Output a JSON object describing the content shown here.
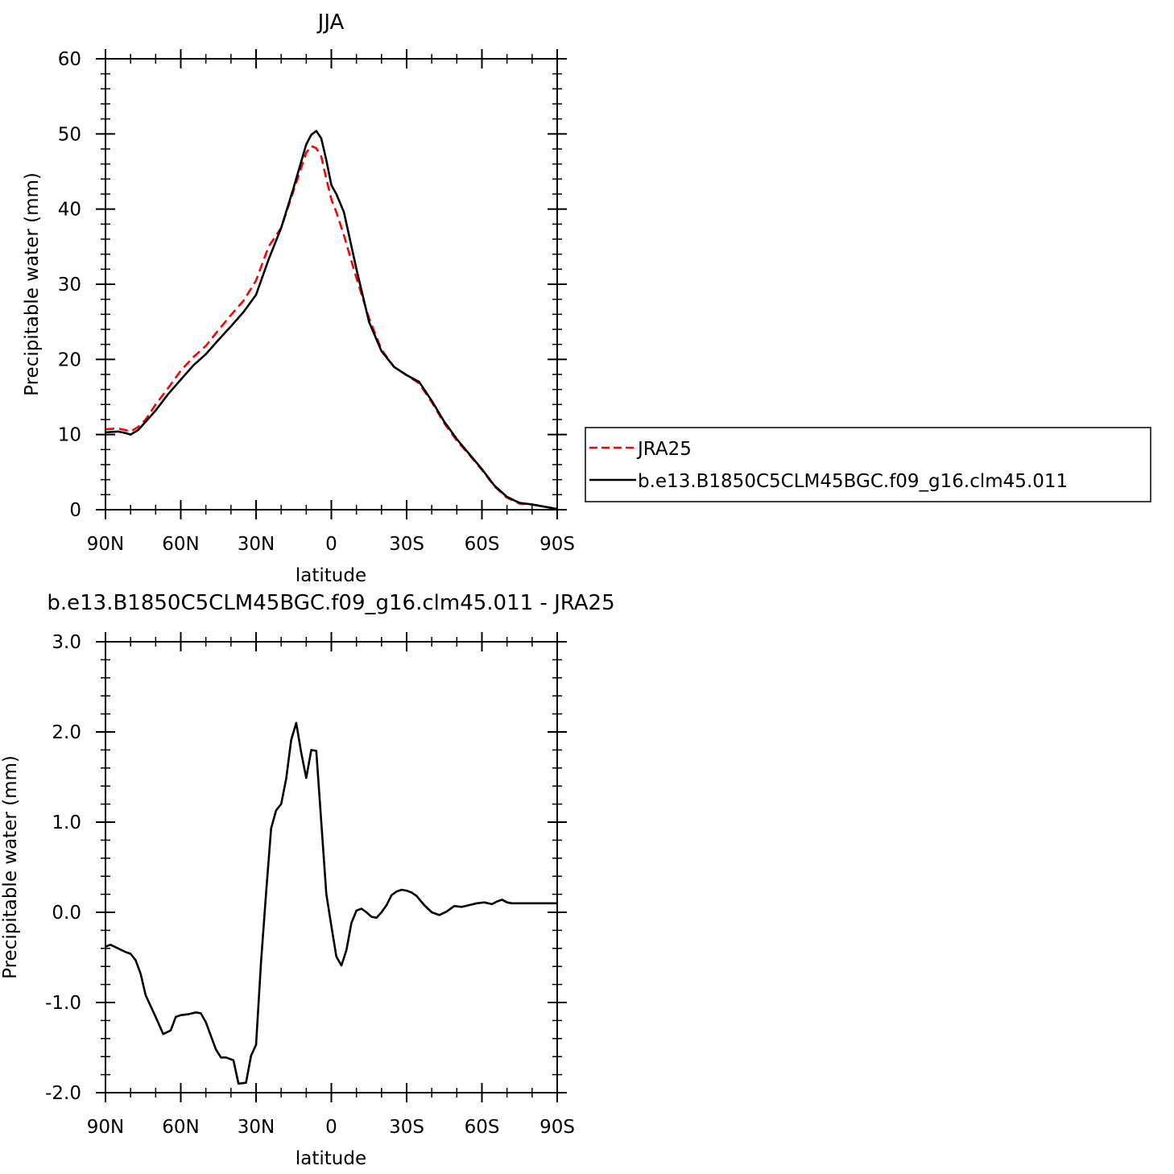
{
  "chart_data": [
    {
      "type": "line",
      "title": "JJA",
      "xlabel": "latitude",
      "ylabel": "Precipitable water (mm)",
      "xlim": [
        90,
        -90
      ],
      "ylim": [
        0,
        60
      ],
      "x_tick_values": [
        90,
        60,
        30,
        0,
        -30,
        -60,
        -90
      ],
      "x_tick_labels": [
        "90N",
        "60N",
        "30N",
        "0",
        "30S",
        "60S",
        "90S"
      ],
      "y_tick_values": [
        0,
        10,
        20,
        30,
        40,
        50,
        60
      ],
      "y_tick_labels": [
        "0",
        "10",
        "20",
        "30",
        "40",
        "50",
        "60"
      ],
      "legend": {
        "position": "right"
      },
      "series": [
        {
          "name": "JRA25",
          "color": "#ff0000",
          "dash": "dashed",
          "x": [
            90,
            85,
            82,
            80,
            77,
            74,
            70,
            65,
            60,
            55,
            50,
            45,
            40,
            35,
            30,
            25,
            20,
            15,
            10,
            8,
            6,
            4,
            2,
            0,
            -2,
            -5,
            -10,
            -15,
            -20,
            -25,
            -30,
            -35,
            -40,
            -45,
            -50,
            -55,
            -60,
            -65,
            -70,
            -75,
            -80,
            -85,
            -90
          ],
          "values": [
            10.7,
            10.8,
            10.6,
            10.4,
            11.0,
            12.0,
            14.0,
            16.2,
            18.5,
            20.3,
            21.8,
            23.9,
            25.9,
            27.8,
            30.5,
            35.0,
            37.5,
            42.5,
            47.5,
            48.4,
            48.1,
            47.0,
            44.0,
            41.3,
            39.6,
            36.5,
            30.8,
            25.5,
            21.3,
            19.0,
            17.9,
            16.8,
            14.3,
            11.5,
            9.2,
            7.3,
            5.3,
            3.1,
            1.6,
            0.8,
            0.7,
            0.4,
            0.1
          ]
        },
        {
          "name": "b.e13.B1850C5CLM45BGC.f09_g16.clm45.011",
          "color": "#000000",
          "dash": "solid",
          "x": [
            90,
            85,
            82,
            80,
            77,
            74,
            70,
            65,
            60,
            55,
            50,
            45,
            40,
            35,
            30,
            25,
            20,
            15,
            10,
            8,
            6,
            4,
            2,
            0,
            -2,
            -5,
            -10,
            -15,
            -20,
            -25,
            -30,
            -35,
            -40,
            -45,
            -50,
            -55,
            -60,
            -65,
            -70,
            -75,
            -80,
            -85,
            -90
          ],
          "values": [
            10.3,
            10.4,
            10.2,
            10.0,
            10.6,
            11.7,
            13.2,
            15.4,
            17.3,
            19.2,
            20.7,
            22.6,
            24.4,
            26.3,
            28.6,
            33.3,
            37.5,
            42.9,
            48.6,
            49.9,
            50.4,
            49.4,
            46.5,
            43.2,
            42.0,
            39.6,
            32.0,
            25.0,
            21.1,
            19.0,
            17.9,
            17.0,
            14.5,
            11.7,
            9.4,
            7.4,
            5.4,
            3.2,
            1.7,
            0.9,
            0.7,
            0.4,
            0.1
          ]
        }
      ]
    },
    {
      "type": "line",
      "title": "b.e13.B1850C5CLM45BGC.f09_g16.clm45.011 - JRA25",
      "xlabel": "latitude",
      "ylabel": "Precipitable water (mm)",
      "xlim": [
        90,
        -90
      ],
      "ylim": [
        -2.0,
        3.0
      ],
      "x_tick_values": [
        90,
        60,
        30,
        0,
        -30,
        -60,
        -90
      ],
      "x_tick_labels": [
        "90N",
        "60N",
        "30N",
        "0",
        "30S",
        "60S",
        "90S"
      ],
      "y_tick_values": [
        -2.0,
        -1.0,
        0.0,
        1.0,
        2.0,
        3.0
      ],
      "y_tick_labels": [
        "-2.0",
        "-1.0",
        "0.0",
        "1.0",
        "2.0",
        "3.0"
      ],
      "series": [
        {
          "color": "#000000",
          "dash": "solid",
          "x": [
            90,
            88,
            85,
            82,
            80,
            78,
            76,
            74,
            72,
            70,
            67,
            64,
            62,
            60,
            57,
            54,
            52,
            50,
            48,
            46,
            44,
            42,
            39,
            37,
            34,
            32,
            30,
            28,
            26,
            24,
            22,
            20,
            18,
            16,
            14,
            12,
            10,
            8,
            6,
            4,
            2,
            0,
            -2,
            -4,
            -6,
            -8,
            -10,
            -12,
            -14,
            -16,
            -18,
            -20,
            -22,
            -24,
            -26,
            -28,
            -30,
            -32,
            -34,
            -37,
            -40,
            -43,
            -46,
            -49,
            -52,
            -55,
            -58,
            -61,
            -64,
            -66,
            -68,
            -70,
            -72,
            -74,
            -76,
            -78,
            -80,
            -82,
            -84,
            -86,
            -88,
            -90
          ],
          "values": [
            -0.38,
            -0.36,
            -0.4,
            -0.44,
            -0.46,
            -0.53,
            -0.68,
            -0.92,
            -1.04,
            -1.16,
            -1.35,
            -1.31,
            -1.16,
            -1.14,
            -1.13,
            -1.11,
            -1.12,
            -1.22,
            -1.37,
            -1.52,
            -1.61,
            -1.61,
            -1.64,
            -1.9,
            -1.89,
            -1.59,
            -1.47,
            -0.55,
            0.22,
            0.93,
            1.13,
            1.2,
            1.48,
            1.91,
            2.1,
            1.77,
            1.49,
            1.8,
            1.79,
            1.0,
            0.2,
            -0.15,
            -0.49,
            -0.59,
            -0.42,
            -0.12,
            0.02,
            0.04,
            0.0,
            -0.05,
            -0.06,
            0.0,
            0.08,
            0.19,
            0.23,
            0.25,
            0.24,
            0.22,
            0.18,
            0.08,
            0.0,
            -0.03,
            0.01,
            0.07,
            0.06,
            0.08,
            0.1,
            0.11,
            0.09,
            0.12,
            0.14,
            0.11,
            0.1,
            0.1,
            0.1,
            0.1,
            0.1,
            0.1,
            0.1,
            0.1,
            0.1,
            0.1
          ]
        }
      ]
    }
  ]
}
